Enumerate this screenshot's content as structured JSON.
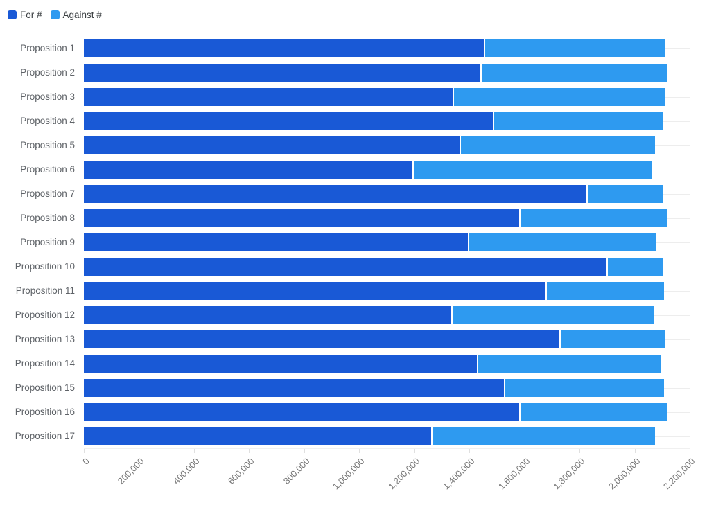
{
  "legend": {
    "items": [
      {
        "label": "For #"
      },
      {
        "label": "Against #"
      }
    ]
  },
  "chart_data": {
    "type": "bar",
    "orientation": "horizontal",
    "stacked": true,
    "title": "",
    "xlabel": "",
    "ylabel": "",
    "legend_position": "top-left",
    "grid": "horizontal-category-lines",
    "xlim": [
      0,
      2200000
    ],
    "x_tick_interval": 200000,
    "x_tick_labels": [
      "0",
      "200,000",
      "400,000",
      "600,000",
      "800,000",
      "1,000,000",
      "1,200,000",
      "1,400,000",
      "1,600,000",
      "1,800,000",
      "2,000,000",
      "2,200,000"
    ],
    "categories": [
      "Proposition 1",
      "Proposition 2",
      "Proposition 3",
      "Proposition 4",
      "Proposition 5",
      "Proposition 6",
      "Proposition 7",
      "Proposition 8",
      "Proposition 9",
      "Proposition 10",
      "Proposition 11",
      "Proposition 12",
      "Proposition 13",
      "Proposition 14",
      "Proposition 15",
      "Proposition 16",
      "Proposition 17"
    ],
    "series": [
      {
        "name": "For #",
        "color": "#1959d6",
        "values": [
          1452000,
          1439000,
          1338000,
          1484000,
          1364000,
          1192000,
          1826000,
          1582000,
          1394000,
          1897000,
          1676000,
          1333000,
          1726000,
          1426000,
          1525000,
          1582000,
          1260000
        ]
      },
      {
        "name": "Against #",
        "color": "#2e9af0",
        "values": [
          659000,
          677000,
          772000,
          619000,
          709000,
          871000,
          277000,
          534000,
          684000,
          206000,
          430000,
          737000,
          385000,
          670000,
          583000,
          534000,
          813000
        ]
      }
    ]
  }
}
